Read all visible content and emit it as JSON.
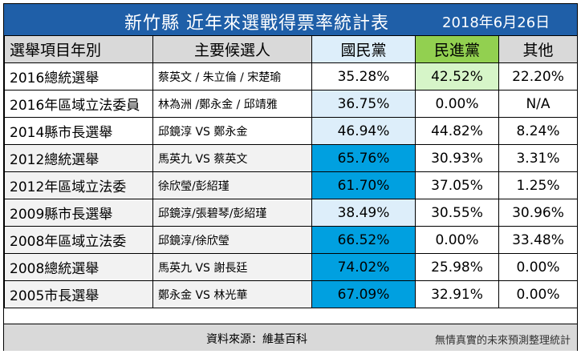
{
  "title": "新竹縣 近年來選戰得票率統計表",
  "date": "2018年6月26日",
  "headers": {
    "item": "選舉項目年別",
    "candidates": "主要候選人",
    "kmt": "國民黨",
    "dpp": "民進黨",
    "other": "其他"
  },
  "rows": [
    {
      "item": "2016總統選舉",
      "candidates": "蔡英文 / 朱立倫 / 宋楚瑜",
      "kmt": "35.28%",
      "dpp": "42.52%",
      "other": "22.20%"
    },
    {
      "item": "2016年區域立法委員",
      "candidates": "林為洲 /鄭永金 / 邱靖雅",
      "kmt": "36.75%",
      "dpp": "0.00%",
      "other": "N/A"
    },
    {
      "item": "2014縣市長選舉",
      "candidates": "邱鏡淳 VS 鄭永金",
      "kmt": "46.94%",
      "dpp": "44.82%",
      "other": "8.24%"
    },
    {
      "item": "2012總統選舉",
      "candidates": "馬英九 VS 蔡英文",
      "kmt": "65.76%",
      "dpp": "30.93%",
      "other": "3.31%"
    },
    {
      "item": "2012年區域立法委",
      "candidates": "徐欣瑩/彭紹瑾",
      "kmt": "61.70%",
      "dpp": "37.05%",
      "other": "1.25%"
    },
    {
      "item": "2009縣市長選舉",
      "candidates": "邱鏡淳/張碧琴/彭紹瑾",
      "kmt": "38.49%",
      "dpp": "30.55%",
      "other": "30.96%"
    },
    {
      "item": "2008年區域立法委",
      "candidates": "邱鏡淳/徐欣瑩",
      "kmt": "66.52%",
      "dpp": "0.00%",
      "other": "33.48%"
    },
    {
      "item": "2008總統選舉",
      "candidates": "馬英九 VS 謝長廷",
      "kmt": "74.02%",
      "dpp": "25.98%",
      "other": "0.00%"
    },
    {
      "item": "2005市長選舉",
      "candidates": "鄭永金 VS 林光華",
      "kmt": "67.09%",
      "dpp": "32.91%",
      "other": "0.00%"
    }
  ],
  "footer": {
    "source": "資料來源：維基百科",
    "note": "無情真實的未來預測整理統計"
  },
  "colors": {
    "title_bg": "#1f5fa8",
    "kmt_light": "#ddeefa",
    "kmt_dark": "#00a0e0",
    "dpp_header": "#92d050",
    "dpp_light": "#d6f5c8",
    "header_bg": "#d9d9d9"
  }
}
